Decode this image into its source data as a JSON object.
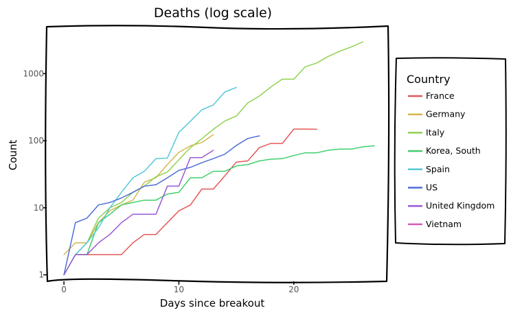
{
  "chart_data": {
    "type": "line",
    "title": "Deaths (log scale)",
    "xlabel": "Days since breakout",
    "ylabel": "Count",
    "yscale": "log",
    "xlim": [
      -1.5,
      28.2
    ],
    "ylim": [
      0.8,
      5000
    ],
    "x_ticks": [
      0,
      10,
      20
    ],
    "y_ticks": [
      1,
      10,
      100,
      1000
    ],
    "y_tick_labels": [
      "1",
      "10",
      "100",
      "1000"
    ],
    "grid": false,
    "legend": {
      "title": "Country",
      "position": "right"
    },
    "series": [
      {
        "name": "France",
        "color": "#e45756",
        "x": [
          1,
          2,
          3,
          4,
          5,
          6,
          7,
          8,
          9,
          10,
          11,
          12,
          13,
          14,
          15,
          16,
          17,
          18,
          19,
          20,
          21,
          22
        ],
        "y": [
          2,
          2,
          2,
          2,
          2,
          3,
          4,
          4,
          6,
          9,
          11,
          19,
          19,
          30,
          48,
          50,
          79,
          91,
          91,
          149,
          149,
          148
        ]
      },
      {
        "name": "Germany",
        "color": "#d4b84a",
        "x": [
          0,
          1,
          2,
          3,
          4,
          5,
          6,
          7,
          8,
          9,
          10,
          11,
          12,
          13
        ],
        "y": [
          2,
          3,
          3,
          6,
          9,
          11,
          13,
          24,
          28,
          44,
          67,
          84,
          94,
          123
        ]
      },
      {
        "name": "Italy",
        "color": "#8fd14f",
        "x": [
          0,
          1,
          2,
          3,
          4,
          5,
          6,
          7,
          8,
          9,
          10,
          11,
          12,
          13,
          14,
          15,
          16,
          17,
          18,
          19,
          20,
          21,
          22,
          23,
          24,
          25,
          26
        ],
        "y": [
          1,
          2,
          3,
          7,
          10,
          12,
          17,
          21,
          29,
          34,
          52,
          79,
          107,
          148,
          197,
          233,
          366,
          463,
          631,
          827,
          827,
          1266,
          1441,
          1809,
          2158,
          2503,
          2978
        ]
      },
      {
        "name": "Korea, South",
        "color": "#3fcf6a",
        "x": [
          0,
          1,
          2,
          3,
          4,
          5,
          6,
          7,
          8,
          9,
          10,
          11,
          12,
          13,
          14,
          15,
          16,
          17,
          18,
          19,
          20,
          21,
          22,
          23,
          24,
          25,
          26,
          27
        ],
        "y": [
          1,
          2,
          2,
          6,
          8,
          11,
          12,
          13,
          13,
          16,
          17,
          28,
          28,
          35,
          35,
          42,
          44,
          50,
          53,
          54,
          60,
          66,
          66,
          72,
          75,
          75,
          81,
          84
        ]
      },
      {
        "name": "Spain",
        "color": "#54c8d8",
        "x": [
          1,
          2,
          3,
          4,
          5,
          6,
          7,
          8,
          9,
          10,
          11,
          12,
          13,
          14,
          15
        ],
        "y": [
          2,
          3,
          5,
          10,
          17,
          28,
          35,
          54,
          55,
          133,
          195,
          289,
          342,
          533,
          623
        ]
      },
      {
        "name": "US",
        "color": "#4c6fd6",
        "x": [
          0,
          1,
          2,
          3,
          4,
          5,
          6,
          7,
          8,
          9,
          10,
          11,
          12,
          13,
          14,
          15,
          16,
          17
        ],
        "y": [
          1,
          6,
          7,
          11,
          12,
          14,
          17,
          21,
          22,
          28,
          36,
          40,
          47,
          54,
          63,
          85,
          108,
          118
        ]
      },
      {
        "name": "United Kingdom",
        "color": "#9b59d6",
        "x": [
          0,
          1,
          2,
          3,
          4,
          5,
          6,
          7,
          8,
          9,
          10,
          11,
          12,
          13
        ],
        "y": [
          1,
          2,
          2,
          3,
          4,
          6,
          8,
          8,
          8,
          21,
          21,
          56,
          56,
          72
        ]
      },
      {
        "name": "Vietnam",
        "color": "#d95bb5",
        "x": [],
        "y": []
      }
    ]
  }
}
